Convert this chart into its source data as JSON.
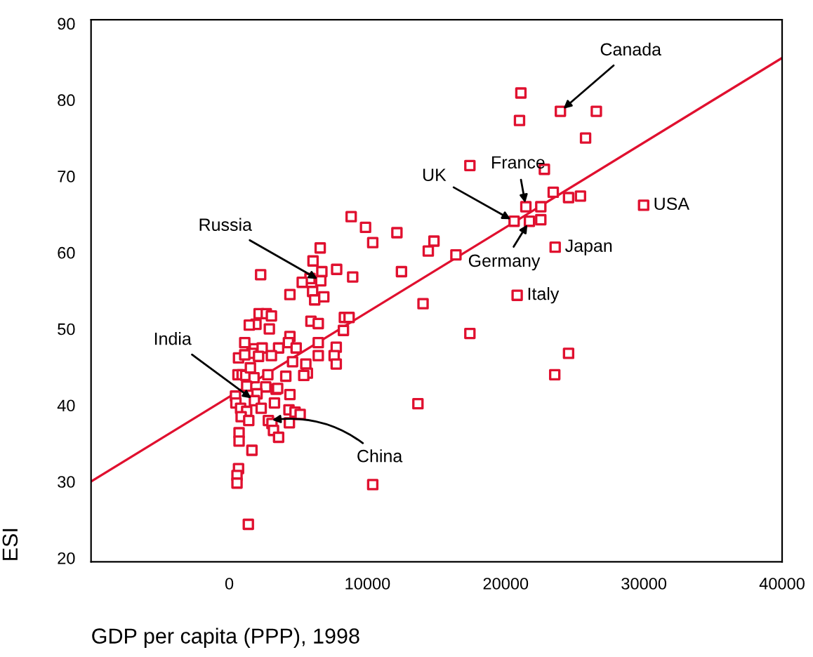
{
  "chart_data": {
    "type": "scatter",
    "xlabel": "GDP per capita (PPP), 1998",
    "ylabel": "ESI",
    "xlim": [
      -10000,
      40000
    ],
    "ylim": [
      19.5,
      90.5
    ],
    "xticks": [
      0,
      10000,
      20000,
      30000,
      40000
    ],
    "yticks": [
      20,
      30,
      40,
      50,
      60,
      70,
      80,
      90
    ],
    "grid": false,
    "legend": false,
    "series": [
      {
        "color": "#e0102f",
        "marker": "square",
        "x": [
          21100,
          21000,
          23960,
          26560,
          25780,
          17410,
          22800,
          23440,
          24550,
          25410,
          21460,
          22540,
          29980,
          20610,
          21720,
          22540,
          23580,
          20830,
          17410,
          24550,
          23550,
          13650,
          10380,
          8820,
          9860,
          10380,
          12130,
          14810,
          14400,
          16400,
          12460,
          8930,
          14020,
          7770,
          6580,
          6060,
          6700,
          6620,
          5840,
          5280,
          6030,
          6180,
          6840,
          4390,
          2270,
          8330,
          8670,
          8260,
          5910,
          6440,
          6440,
          6440,
          7740,
          7590,
          7740,
          5540,
          5650,
          5390,
          4390,
          4280,
          4840,
          3570,
          4580,
          4090,
          2160,
          2680,
          3050,
          1930,
          1450,
          2900,
          1120,
          1820,
          2380,
          1640,
          2120,
          3050,
          670,
          1120,
          630,
          930,
          1190,
          1530,
          1790,
          2790,
          2640,
          1260,
          3390,
          3500,
          4390,
          450,
          480,
          2010,
          1820,
          820,
          1260,
          2310,
          860,
          1410,
          3270,
          4320,
          4760,
          5130,
          2830,
          3090,
          4350,
          3200,
          3570,
          710,
          710,
          1640,
          670,
          560,
          560,
          1380
        ],
        "values": [
          80.9,
          77.3,
          78.5,
          78.5,
          75.0,
          71.4,
          70.9,
          67.9,
          67.2,
          67.4,
          66.0,
          66.0,
          66.2,
          64.1,
          64.1,
          64.3,
          60.7,
          54.4,
          49.4,
          46.8,
          44.0,
          40.2,
          29.6,
          64.7,
          63.3,
          61.3,
          62.6,
          61.5,
          60.2,
          59.7,
          57.5,
          56.8,
          53.3,
          57.8,
          60.6,
          58.9,
          57.5,
          56.3,
          56.6,
          56.1,
          54.9,
          53.8,
          54.2,
          54.5,
          57.1,
          51.5,
          51.5,
          49.8,
          51.0,
          50.7,
          48.2,
          46.5,
          47.6,
          46.5,
          45.4,
          45.4,
          44.2,
          43.9,
          49.0,
          48.2,
          47.5,
          47.5,
          45.7,
          43.8,
          52.0,
          52.0,
          51.7,
          50.6,
          50.5,
          50.0,
          48.2,
          47.4,
          47.5,
          46.8,
          46.4,
          46.5,
          46.2,
          46.6,
          44.0,
          44.0,
          43.9,
          44.9,
          43.6,
          44.0,
          42.4,
          42.5,
          42.1,
          42.2,
          41.4,
          41.2,
          40.3,
          41.5,
          40.6,
          39.6,
          39.2,
          39.6,
          38.5,
          38.0,
          40.3,
          39.4,
          39.1,
          38.8,
          38.0,
          37.6,
          37.7,
          36.7,
          35.8,
          36.4,
          35.3,
          34.1,
          31.7,
          30.8,
          29.8,
          24.4
        ]
      },
      {
        "type": "line",
        "color": "#e0102f",
        "marker": "none",
        "line_style": "solid",
        "x": [
          -10000,
          40000
        ],
        "values": [
          30,
          85.5
        ]
      }
    ],
    "annotations": [
      {
        "text": "Canada",
        "x": 23960,
        "y": 78.5
      },
      {
        "text": "France",
        "x": 21460,
        "y": 66.0
      },
      {
        "text": "UK",
        "x": 20610,
        "y": 64.1
      },
      {
        "text": "Germany",
        "x": 21720,
        "y": 64.1
      },
      {
        "text": "USA",
        "x": 29980,
        "y": 66.2
      },
      {
        "text": "Japan",
        "x": 23580,
        "y": 60.7
      },
      {
        "text": "Italy",
        "x": 20830,
        "y": 54.4
      },
      {
        "text": "Russia",
        "x": 6620,
        "y": 56.3
      },
      {
        "text": "India",
        "x": 1820,
        "y": 40.6
      },
      {
        "text": "China",
        "x": 2830,
        "y": 38.0
      }
    ]
  }
}
